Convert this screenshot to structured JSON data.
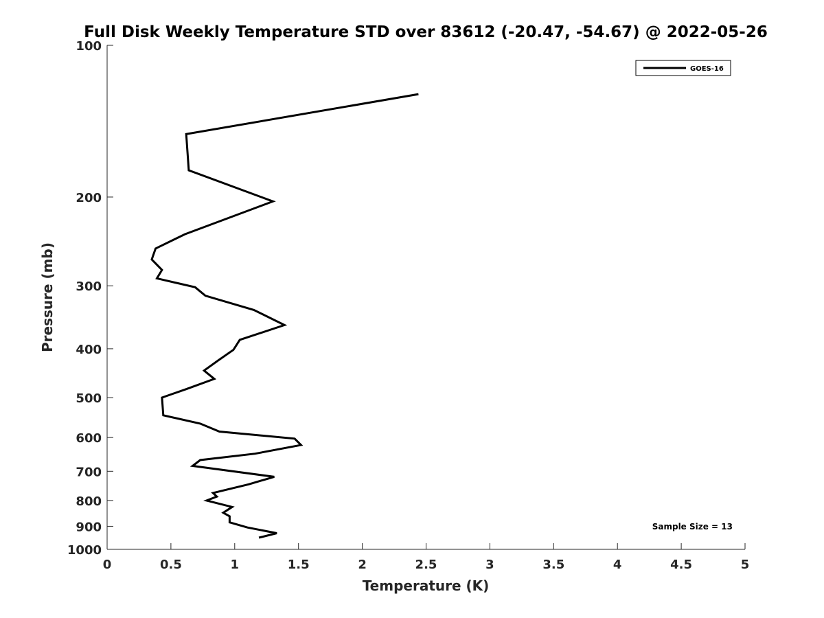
{
  "chart_data": {
    "type": "line",
    "title": "Full Disk Weekly Temperature STD over 83612 (-20.47, -54.67) @ 2022-05-26",
    "xlabel": "Temperature (K)",
    "ylabel": "Pressure (mb)",
    "xlim": [
      0,
      5
    ],
    "ylim": [
      1000,
      100
    ],
    "y_scale": "log",
    "y_reversed": true,
    "grid": false,
    "legend_position": "top-right",
    "x_ticks": [
      0,
      0.5,
      1,
      1.5,
      2,
      2.5,
      3,
      3.5,
      4,
      4.5,
      5
    ],
    "x_tick_labels": [
      "0",
      "0.5",
      "1",
      "1.5",
      "2",
      "2.5",
      "3",
      "3.5",
      "4",
      "4.5",
      "5"
    ],
    "y_ticks": [
      100,
      200,
      300,
      400,
      500,
      600,
      700,
      800,
      900,
      1000
    ],
    "y_tick_labels": [
      "100",
      "200",
      "300",
      "400",
      "500",
      "600",
      "700",
      "800",
      "900",
      "1000"
    ],
    "series": [
      {
        "name": "GOES-16",
        "color": "#000000",
        "points": [
          {
            "x": 2.44,
            "y": 125
          },
          {
            "x": 0.62,
            "y": 150
          },
          {
            "x": 0.64,
            "y": 177
          },
          {
            "x": 1.3,
            "y": 204
          },
          {
            "x": 0.61,
            "y": 237
          },
          {
            "x": 0.38,
            "y": 253
          },
          {
            "x": 0.35,
            "y": 266
          },
          {
            "x": 0.43,
            "y": 279
          },
          {
            "x": 0.39,
            "y": 290
          },
          {
            "x": 0.69,
            "y": 302
          },
          {
            "x": 0.77,
            "y": 314
          },
          {
            "x": 1.15,
            "y": 335
          },
          {
            "x": 1.39,
            "y": 359
          },
          {
            "x": 1.04,
            "y": 384
          },
          {
            "x": 0.99,
            "y": 402
          },
          {
            "x": 0.87,
            "y": 422
          },
          {
            "x": 0.76,
            "y": 442
          },
          {
            "x": 0.84,
            "y": 459
          },
          {
            "x": 0.62,
            "y": 481
          },
          {
            "x": 0.43,
            "y": 500
          },
          {
            "x": 0.44,
            "y": 542
          },
          {
            "x": 0.73,
            "y": 563
          },
          {
            "x": 0.88,
            "y": 584
          },
          {
            "x": 1.47,
            "y": 603
          },
          {
            "x": 1.52,
            "y": 621
          },
          {
            "x": 1.16,
            "y": 646
          },
          {
            "x": 0.73,
            "y": 665
          },
          {
            "x": 0.67,
            "y": 683
          },
          {
            "x": 1.31,
            "y": 718
          },
          {
            "x": 1.11,
            "y": 743
          },
          {
            "x": 0.83,
            "y": 773
          },
          {
            "x": 0.86,
            "y": 786
          },
          {
            "x": 0.78,
            "y": 800
          },
          {
            "x": 0.98,
            "y": 824
          },
          {
            "x": 0.91,
            "y": 846
          },
          {
            "x": 0.96,
            "y": 860
          },
          {
            "x": 0.96,
            "y": 884
          },
          {
            "x": 1.1,
            "y": 905
          },
          {
            "x": 1.33,
            "y": 929
          },
          {
            "x": 1.19,
            "y": 948
          }
        ]
      }
    ],
    "annotations": [
      {
        "text": "Sample Size = 13",
        "position": "bottom-right"
      }
    ]
  }
}
